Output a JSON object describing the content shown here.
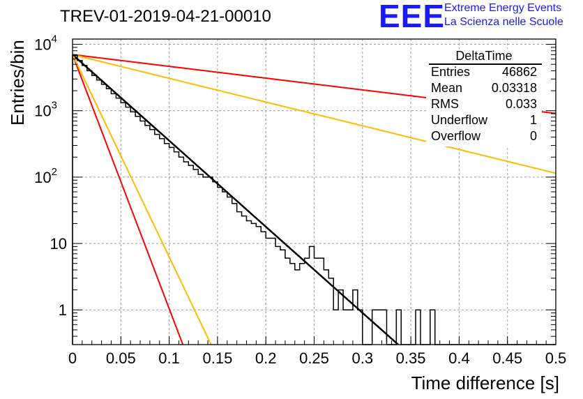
{
  "title": "TREV-01-2019-04-21-00010",
  "logo": {
    "mark": "EEE",
    "line1": "Extreme Energy Events",
    "line2": "La Scienza nelle Scuole",
    "color": "#1a1aff"
  },
  "stats": {
    "name": "DeltaTime",
    "rows": [
      {
        "label": "Entries",
        "value": "46862"
      },
      {
        "label": "Mean",
        "value": "0.03318"
      },
      {
        "label": "RMS",
        "value": "0.033"
      },
      {
        "label": "Underflow",
        "value": "1"
      },
      {
        "label": "Overflow",
        "value": "0"
      }
    ]
  },
  "chart_data": {
    "type": "line",
    "xlabel": "Time difference [s]",
    "ylabel": "Entries/bin",
    "xlim": [
      0,
      0.5
    ],
    "ylim": [
      0.3,
      12000
    ],
    "yscale": "log",
    "grid": true,
    "xticks": [
      "0",
      "0.05",
      "0.1",
      "0.15",
      "0.2",
      "0.25",
      "0.3",
      "0.35",
      "0.4",
      "0.45",
      "0.5"
    ],
    "yticks": [
      {
        "value": 1,
        "label": "1"
      },
      {
        "value": 10,
        "label": "10"
      },
      {
        "value": 100,
        "label": "10",
        "exp": "2"
      },
      {
        "value": 1000,
        "label": "10",
        "exp": "3"
      },
      {
        "value": 10000,
        "label": "10",
        "exp": "4"
      }
    ],
    "histogram": {
      "bin_width": 0.005,
      "color": "#000000",
      "counts": [
        6800,
        5700,
        4800,
        4000,
        3400,
        2900,
        2500,
        2150,
        1800,
        1550,
        1320,
        1130,
        960,
        820,
        700,
        600,
        520,
        440,
        380,
        320,
        280,
        240,
        200,
        170,
        150,
        130,
        110,
        100,
        100,
        85,
        70,
        60,
        50,
        40,
        30,
        26,
        22,
        20,
        18,
        15,
        12,
        12,
        9,
        8,
        6,
        5,
        4,
        5,
        6,
        9,
        6,
        6,
        4,
        3,
        1,
        2,
        1,
        1,
        2,
        1,
        0,
        0,
        1,
        1,
        1,
        0,
        0,
        1,
        0,
        0,
        0,
        1,
        0,
        0,
        1,
        0,
        0,
        0,
        0,
        0,
        0,
        0,
        0,
        0,
        0,
        0,
        0,
        0,
        0,
        0,
        0,
        0,
        0,
        0,
        0,
        0,
        0,
        0,
        0,
        0
      ]
    },
    "series": [
      {
        "kind": "exp",
        "A": 7000,
        "tau": 0.0335,
        "color": "#000000",
        "width": 2.5
      },
      {
        "kind": "exp",
        "A": 7000,
        "tau": 0.01135,
        "color": "#ff0000",
        "width": 2
      },
      {
        "kind": "exp",
        "A": 7000,
        "tau": 0.01425,
        "color": "#ffbb00",
        "width": 2
      },
      {
        "kind": "exp",
        "A": 7000,
        "tau": 0.245,
        "color": "#ff0000",
        "width": 2
      },
      {
        "kind": "exp",
        "A": 7000,
        "tau": 0.1215,
        "color": "#ffbb00",
        "width": 2
      }
    ]
  }
}
